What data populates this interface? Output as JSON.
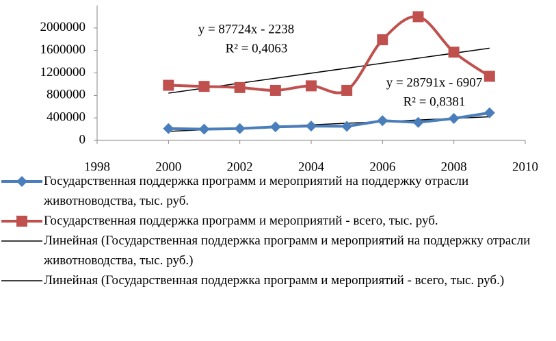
{
  "chart_data": {
    "type": "line",
    "x": [
      2000,
      2001,
      2002,
      2003,
      2004,
      2005,
      2006,
      2007,
      2008,
      2009
    ],
    "series": [
      {
        "name": "Государственная поддержка программ и мероприятий на поддержку отрасли животноводства, тыс. руб.",
        "color": "#4a7ebb",
        "marker": "diamond",
        "values": [
          210000,
          200000,
          210000,
          240000,
          255000,
          250000,
          350000,
          320000,
          390000,
          490000
        ]
      },
      {
        "name": "Государственная поддержка программ и мероприятий - всего, тыс. руб.",
        "color": "#c0504d",
        "marker": "square",
        "smooth": true,
        "values": [
          980000,
          960000,
          940000,
          890000,
          970000,
          890000,
          1790000,
          2200000,
          1570000,
          1140000
        ]
      },
      {
        "name": "Линейная (Государственная поддержка программ и мероприятий на поддержку отрасли животноводства, тыс. руб.)",
        "color": "#000000",
        "x": [
          2000,
          2009
        ],
        "values": [
          160000,
          420000
        ]
      },
      {
        "name": "Линейная (Государственная поддержка программ и мероприятий - всего, тыс. руб.)",
        "color": "#000000",
        "x": [
          2000,
          2009
        ],
        "values": [
          840000,
          1640000
        ]
      }
    ],
    "annotations": [
      "y = 87724x - 2238",
      "R² = 0,4063",
      "y = 28791x - 6907",
      "R² = 0,8381"
    ],
    "xlim": [
      1998,
      2010
    ],
    "xticks": [
      1998,
      2000,
      2002,
      2004,
      2006,
      2008,
      2010
    ],
    "ylim": [
      0,
      2400000
    ],
    "yticks": [
      0,
      400000,
      800000,
      1200000,
      1600000,
      2000000
    ]
  }
}
